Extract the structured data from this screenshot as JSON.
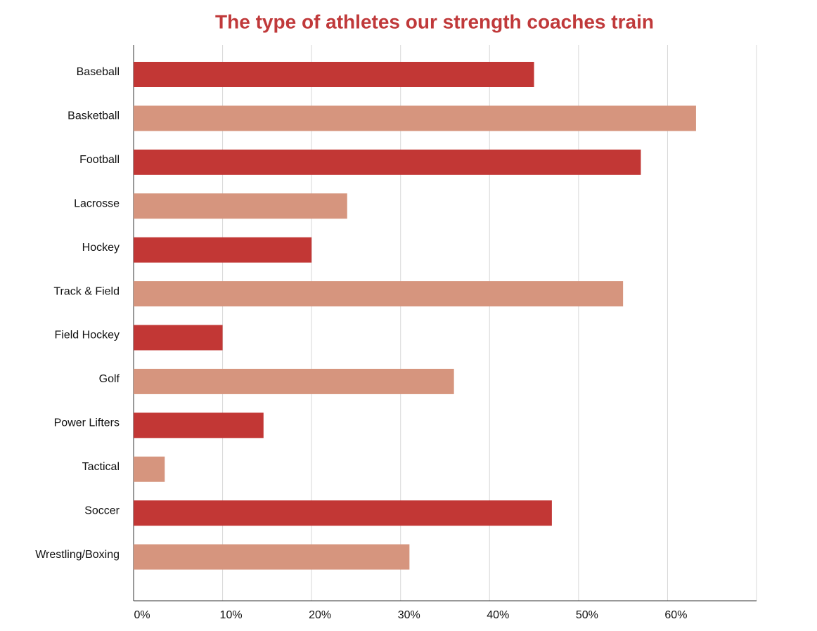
{
  "chart_data": {
    "type": "bar",
    "orientation": "horizontal",
    "title": "The type of athletes our strength coaches train",
    "categories": [
      "Baseball",
      "Basketball",
      "Football",
      "Lacrosse",
      "Hockey",
      "Track & Field",
      "Field Hockey",
      "Golf",
      "Power Lifters",
      "Tactical",
      "Soccer",
      "Wrestling/Boxing"
    ],
    "values": [
      45,
      63.2,
      57,
      24,
      20,
      55,
      10,
      36,
      14.6,
      3.5,
      47,
      31
    ],
    "colors": [
      "#c23735",
      "#d6957e",
      "#c23735",
      "#d6957e",
      "#c23735",
      "#d6957e",
      "#c23735",
      "#d6957e",
      "#c23735",
      "#d6957e",
      "#c23735",
      "#d6957e"
    ],
    "xlim": [
      0,
      70
    ],
    "xticks": [
      {
        "value": 0,
        "label": "0%"
      },
      {
        "value": 10,
        "label": "10%"
      },
      {
        "value": 20,
        "label": "20%"
      },
      {
        "value": 30,
        "label": "30%"
      },
      {
        "value": 40,
        "label": "40%"
      },
      {
        "value": 50,
        "label": "50%"
      },
      {
        "value": 60,
        "label": "60%"
      }
    ],
    "grid": true
  }
}
